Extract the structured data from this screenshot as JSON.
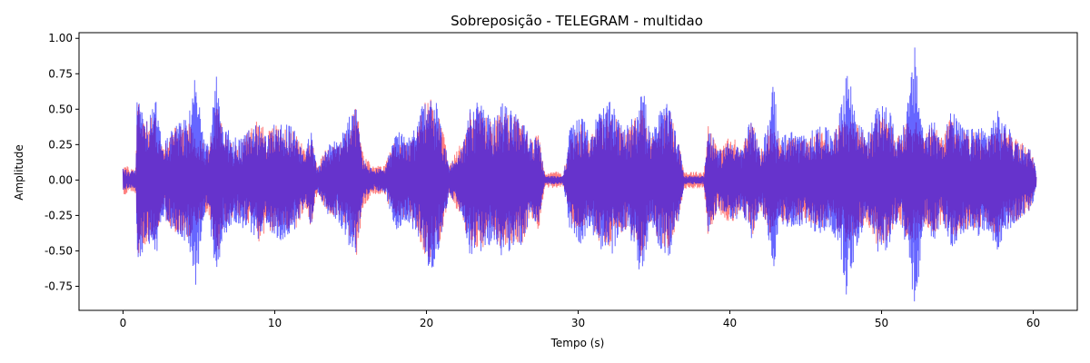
{
  "chart_data": {
    "type": "line",
    "title": "Sobreposição - TELEGRAM - multidao",
    "xlabel": "Tempo (s)",
    "ylabel": "Amplitude",
    "xlim": [
      -2.9,
      62.9
    ],
    "ylim": [
      -0.92,
      1.04
    ],
    "xticks": [
      0,
      10,
      20,
      30,
      40,
      50,
      60
    ],
    "yticks": [
      -0.75,
      -0.5,
      -0.25,
      0.0,
      0.25,
      0.5,
      0.75,
      1.0
    ],
    "grid": false,
    "duration": 60.2,
    "series": [
      {
        "color": "#ff0000",
        "opacity": 0.5,
        "envelope": [
          [
            0.0,
            0.12
          ],
          [
            0.5,
            0.08
          ],
          [
            0.85,
            0.1
          ],
          [
            0.95,
            0.63
          ],
          [
            1.1,
            0.55
          ],
          [
            1.5,
            0.45
          ],
          [
            2.2,
            0.45
          ],
          [
            2.6,
            0.22
          ],
          [
            3.2,
            0.35
          ],
          [
            3.8,
            0.4
          ],
          [
            4.3,
            0.42
          ],
          [
            5.0,
            0.3
          ],
          [
            5.6,
            0.22
          ],
          [
            6.2,
            0.55
          ],
          [
            6.6,
            0.35
          ],
          [
            7.4,
            0.25
          ],
          [
            8.0,
            0.3
          ],
          [
            8.9,
            0.45
          ],
          [
            9.5,
            0.35
          ],
          [
            10.2,
            0.4
          ],
          [
            10.8,
            0.35
          ],
          [
            11.4,
            0.35
          ],
          [
            12.0,
            0.2
          ],
          [
            12.4,
            0.35
          ],
          [
            12.8,
            0.1
          ],
          [
            13.5,
            0.25
          ],
          [
            14.2,
            0.25
          ],
          [
            14.8,
            0.35
          ],
          [
            15.4,
            0.55
          ],
          [
            15.8,
            0.2
          ],
          [
            16.4,
            0.1
          ],
          [
            17.2,
            0.1
          ],
          [
            18.0,
            0.3
          ],
          [
            18.8,
            0.25
          ],
          [
            19.4,
            0.35
          ],
          [
            19.8,
            0.55
          ],
          [
            20.4,
            0.6
          ],
          [
            21.0,
            0.4
          ],
          [
            21.5,
            0.1
          ],
          [
            22.4,
            0.3
          ],
          [
            22.9,
            0.5
          ],
          [
            23.6,
            0.5
          ],
          [
            24.4,
            0.4
          ],
          [
            25.0,
            0.5
          ],
          [
            25.7,
            0.45
          ],
          [
            26.3,
            0.45
          ],
          [
            26.8,
            0.3
          ],
          [
            27.4,
            0.35
          ],
          [
            27.8,
            0.05
          ],
          [
            28.5,
            0.06
          ],
          [
            29.0,
            0.05
          ],
          [
            29.5,
            0.3
          ],
          [
            30.2,
            0.4
          ],
          [
            30.8,
            0.3
          ],
          [
            31.4,
            0.45
          ],
          [
            32.2,
            0.5
          ],
          [
            33.0,
            0.35
          ],
          [
            33.6,
            0.4
          ],
          [
            34.2,
            0.55
          ],
          [
            34.8,
            0.3
          ],
          [
            35.4,
            0.45
          ],
          [
            36.0,
            0.5
          ],
          [
            36.6,
            0.3
          ],
          [
            37.0,
            0.06
          ],
          [
            38.3,
            0.06
          ],
          [
            38.6,
            0.45
          ],
          [
            39.2,
            0.2
          ],
          [
            39.7,
            0.3
          ],
          [
            40.3,
            0.3
          ],
          [
            40.8,
            0.2
          ],
          [
            41.4,
            0.45
          ],
          [
            42.0,
            0.2
          ],
          [
            42.6,
            0.4
          ],
          [
            43.2,
            0.3
          ],
          [
            44.0,
            0.3
          ],
          [
            44.8,
            0.3
          ],
          [
            45.4,
            0.3
          ],
          [
            46.0,
            0.35
          ],
          [
            46.6,
            0.3
          ],
          [
            47.2,
            0.4
          ],
          [
            47.8,
            0.45
          ],
          [
            48.4,
            0.4
          ],
          [
            49.0,
            0.3
          ],
          [
            49.6,
            0.45
          ],
          [
            50.4,
            0.45
          ],
          [
            51.0,
            0.3
          ],
          [
            51.6,
            0.4
          ],
          [
            52.2,
            0.45
          ],
          [
            52.8,
            0.3
          ],
          [
            53.4,
            0.4
          ],
          [
            54.0,
            0.3
          ],
          [
            54.6,
            0.45
          ],
          [
            55.2,
            0.35
          ],
          [
            55.8,
            0.35
          ],
          [
            56.4,
            0.35
          ],
          [
            57.0,
            0.3
          ],
          [
            57.6,
            0.4
          ],
          [
            58.2,
            0.35
          ],
          [
            58.8,
            0.3
          ],
          [
            59.4,
            0.25
          ],
          [
            59.9,
            0.2
          ],
          [
            60.2,
            0.05
          ]
        ]
      },
      {
        "color": "#0000ff",
        "opacity": 0.6,
        "envelope": [
          [
            0.0,
            0.08
          ],
          [
            0.5,
            0.06
          ],
          [
            0.85,
            0.08
          ],
          [
            0.95,
            0.7
          ],
          [
            1.1,
            0.62
          ],
          [
            1.5,
            0.4
          ],
          [
            2.2,
            0.58
          ],
          [
            2.6,
            0.25
          ],
          [
            3.2,
            0.35
          ],
          [
            3.8,
            0.42
          ],
          [
            4.3,
            0.45
          ],
          [
            4.8,
            0.76
          ],
          [
            5.3,
            0.3
          ],
          [
            5.6,
            0.25
          ],
          [
            6.2,
            0.77
          ],
          [
            6.6,
            0.4
          ],
          [
            7.4,
            0.3
          ],
          [
            8.0,
            0.35
          ],
          [
            8.9,
            0.42
          ],
          [
            9.5,
            0.3
          ],
          [
            10.2,
            0.45
          ],
          [
            10.8,
            0.4
          ],
          [
            11.4,
            0.35
          ],
          [
            12.0,
            0.22
          ],
          [
            12.4,
            0.35
          ],
          [
            12.8,
            0.08
          ],
          [
            13.5,
            0.25
          ],
          [
            14.2,
            0.3
          ],
          [
            14.8,
            0.45
          ],
          [
            15.4,
            0.52
          ],
          [
            15.8,
            0.15
          ],
          [
            16.4,
            0.08
          ],
          [
            17.2,
            0.08
          ],
          [
            18.0,
            0.35
          ],
          [
            18.8,
            0.3
          ],
          [
            19.4,
            0.4
          ],
          [
            19.8,
            0.55
          ],
          [
            20.4,
            0.66
          ],
          [
            21.0,
            0.4
          ],
          [
            21.5,
            0.1
          ],
          [
            22.4,
            0.25
          ],
          [
            22.9,
            0.55
          ],
          [
            23.6,
            0.55
          ],
          [
            24.4,
            0.42
          ],
          [
            25.0,
            0.55
          ],
          [
            25.7,
            0.48
          ],
          [
            26.3,
            0.48
          ],
          [
            26.8,
            0.3
          ],
          [
            27.4,
            0.3
          ],
          [
            27.8,
            0.03
          ],
          [
            28.5,
            0.03
          ],
          [
            29.0,
            0.03
          ],
          [
            29.5,
            0.4
          ],
          [
            30.2,
            0.45
          ],
          [
            30.8,
            0.35
          ],
          [
            31.4,
            0.5
          ],
          [
            32.2,
            0.56
          ],
          [
            33.0,
            0.35
          ],
          [
            33.6,
            0.45
          ],
          [
            34.2,
            0.72
          ],
          [
            34.8,
            0.3
          ],
          [
            35.4,
            0.5
          ],
          [
            36.0,
            0.55
          ],
          [
            36.6,
            0.3
          ],
          [
            37.0,
            0.03
          ],
          [
            38.3,
            0.03
          ],
          [
            38.6,
            0.4
          ],
          [
            39.2,
            0.2
          ],
          [
            39.7,
            0.25
          ],
          [
            40.3,
            0.3
          ],
          [
            40.8,
            0.22
          ],
          [
            41.4,
            0.45
          ],
          [
            42.0,
            0.2
          ],
          [
            42.6,
            0.45
          ],
          [
            42.9,
            0.75
          ],
          [
            43.2,
            0.3
          ],
          [
            44.0,
            0.35
          ],
          [
            44.8,
            0.32
          ],
          [
            45.4,
            0.35
          ],
          [
            46.0,
            0.4
          ],
          [
            46.6,
            0.35
          ],
          [
            47.2,
            0.45
          ],
          [
            47.7,
            0.84
          ],
          [
            48.4,
            0.45
          ],
          [
            49.0,
            0.3
          ],
          [
            49.6,
            0.5
          ],
          [
            50.4,
            0.55
          ],
          [
            51.0,
            0.3
          ],
          [
            51.6,
            0.45
          ],
          [
            52.2,
            0.95
          ],
          [
            52.8,
            0.3
          ],
          [
            53.4,
            0.45
          ],
          [
            54.0,
            0.3
          ],
          [
            54.6,
            0.5
          ],
          [
            55.2,
            0.4
          ],
          [
            55.8,
            0.35
          ],
          [
            56.4,
            0.4
          ],
          [
            57.0,
            0.35
          ],
          [
            57.6,
            0.5
          ],
          [
            58.2,
            0.4
          ],
          [
            58.8,
            0.3
          ],
          [
            59.4,
            0.25
          ],
          [
            59.9,
            0.22
          ],
          [
            60.2,
            0.05
          ]
        ]
      }
    ]
  }
}
